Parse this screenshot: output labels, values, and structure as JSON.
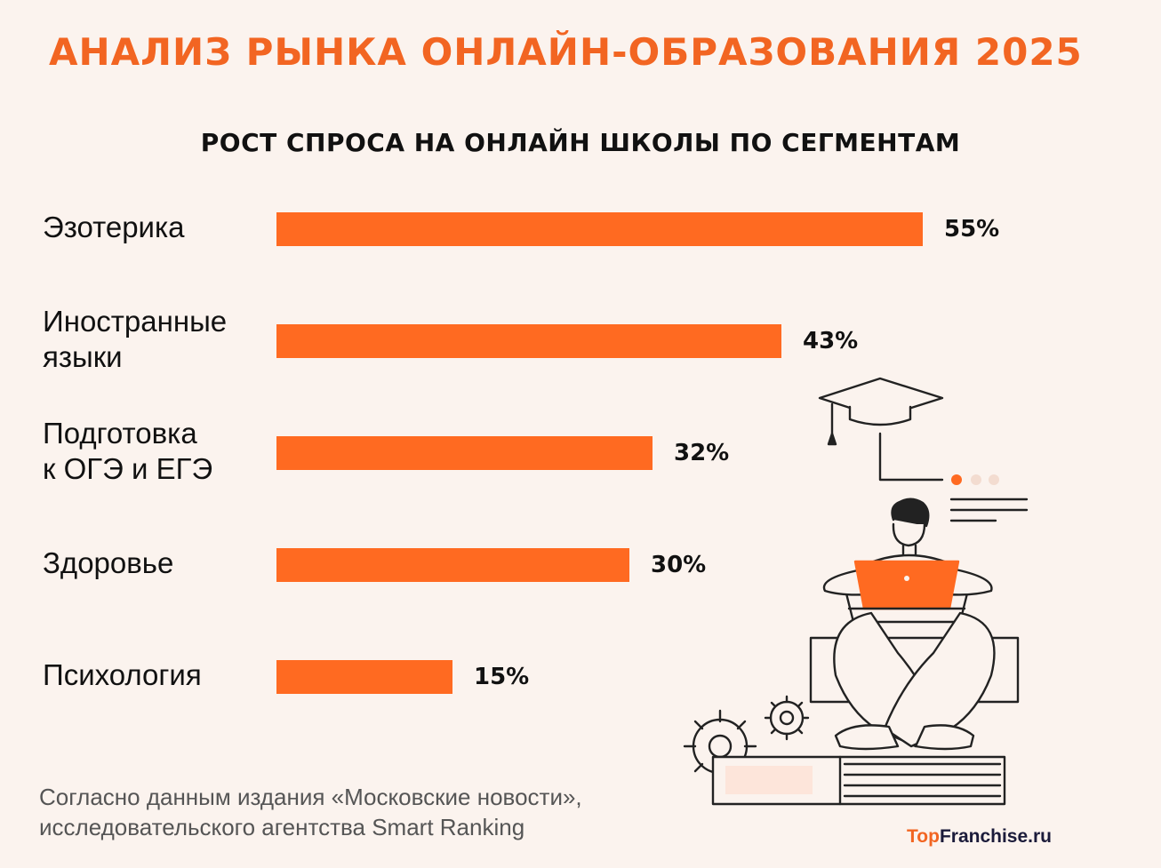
{
  "title": "АНАЛИЗ РЫНКА ОНЛАЙН-ОБРАЗОВАНИЯ 2025",
  "chart_data": {
    "type": "bar",
    "orientation": "horizontal",
    "title": "РОСТ СПРОСА НА ОНЛАЙН ШКОЛЫ ПО СЕГМЕНТАМ",
    "categories": [
      [
        "Эзотерика"
      ],
      [
        "Иностранные",
        "языки"
      ],
      [
        "Подготовка",
        "к ОГЭ и ЕГЭ"
      ],
      [
        "Здоровье"
      ],
      [
        "Психология"
      ]
    ],
    "values": [
      55,
      43,
      32,
      30,
      15
    ],
    "value_labels": [
      "55%",
      "43%",
      "32%",
      "30%",
      "15%"
    ],
    "unit": "%",
    "xlim": [
      0,
      55
    ],
    "grid": false,
    "bar_color": "#ff6a21"
  },
  "source_lines": [
    "Согласно данным издания «Московские новости»,",
    "исследовательского агентства Smart Ranking"
  ],
  "brand": {
    "part1": "Top",
    "part2": "Franchise.ru"
  },
  "colors": {
    "accent": "#f26522",
    "background": "#fbf3ee",
    "text": "#111111"
  },
  "illustration": "student-with-laptop-graduation-cap-books-gears"
}
